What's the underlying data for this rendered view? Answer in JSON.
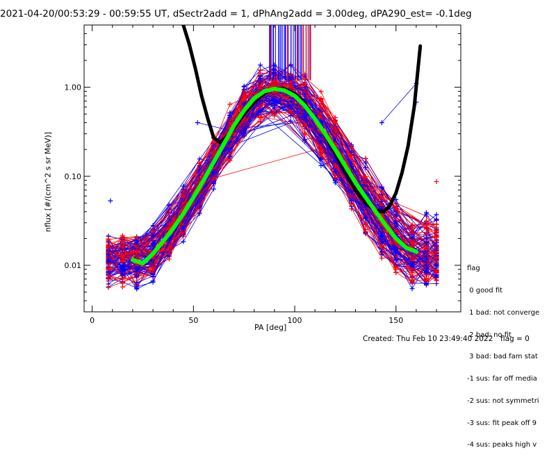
{
  "chart_data": {
    "type": "scatter",
    "title": "2021-04-20/00:53:29 - 00:59:55 UT, dSectr2add = 1, dPhAng2add = 3.00deg, dPA290_est=  -0.1deg",
    "xlabel": "PA [deg]",
    "ylabel": "nflux [#/(cm^2 s sr MeV)]",
    "xlim": [
      -4,
      182
    ],
    "ylim": [
      0.003,
      5.0
    ],
    "y_scale": "log",
    "x_ticks": [
      0,
      50,
      100,
      150
    ],
    "x_tick_labels": [
      "0",
      "50",
      "100",
      "150"
    ],
    "y_ticks": [
      0.01,
      0.1,
      1.0
    ],
    "y_tick_labels": [
      "0.01",
      "0.10",
      "1.00"
    ],
    "grid": false,
    "series_colors": {
      "spectra_red": "#ff0000",
      "spectra_blue": "#0000ff",
      "fit_green": "#00ff00",
      "model_black": "#000000"
    },
    "green_fit": {
      "x": [
        20,
        25,
        30,
        35,
        40,
        45,
        50,
        55,
        60,
        65,
        70,
        75,
        80,
        85,
        90,
        95,
        100,
        105,
        110,
        115,
        120,
        125,
        130,
        135,
        140,
        145,
        150,
        155,
        160
      ],
      "y": [
        0.0115,
        0.0105,
        0.0135,
        0.0185,
        0.026,
        0.038,
        0.058,
        0.09,
        0.145,
        0.23,
        0.37,
        0.55,
        0.75,
        0.9,
        0.96,
        0.92,
        0.8,
        0.62,
        0.44,
        0.3,
        0.2,
        0.13,
        0.085,
        0.058,
        0.04,
        0.028,
        0.02,
        0.0158,
        0.0142
      ]
    },
    "black_model": {
      "x": [
        45,
        48,
        51,
        54,
        57,
        60,
        63,
        66,
        70,
        75,
        80,
        85,
        90,
        95,
        100,
        105,
        110,
        115,
        120,
        125,
        130,
        135,
        140,
        144,
        147,
        150,
        153,
        156,
        159,
        162
      ],
      "y": [
        5.0,
        3.0,
        1.6,
        0.8,
        0.45,
        0.27,
        0.24,
        0.27,
        0.35,
        0.5,
        0.68,
        0.86,
        0.97,
        0.95,
        0.84,
        0.65,
        0.45,
        0.29,
        0.18,
        0.11,
        0.07,
        0.05,
        0.041,
        0.04,
        0.047,
        0.065,
        0.11,
        0.22,
        0.6,
        2.9
      ]
    },
    "sample_points": [
      {
        "x": 9,
        "y": 0.053,
        "series": "blue"
      },
      {
        "x": 52,
        "y": 0.4,
        "series": "blue"
      },
      {
        "x": 75,
        "y": 0.3,
        "series": "blue"
      },
      {
        "x": 143,
        "y": 0.4,
        "series": "blue"
      },
      {
        "x": 160,
        "y": 1.1,
        "series": "blue"
      },
      {
        "x": 160,
        "y": 0.68,
        "series": "blue"
      },
      {
        "x": 170,
        "y": 0.087,
        "series": "red"
      },
      {
        "x": 15,
        "y": 0.02,
        "series": "red"
      },
      {
        "x": 95,
        "y": 1.05,
        "series": "red"
      },
      {
        "x": 103,
        "y": 1.05,
        "series": "red"
      }
    ]
  },
  "legend": {
    "title": "flag",
    "items": [
      " 0 good fit",
      " 1 bad: not converge",
      " 2 bad: no fit",
      " 3 bad: bad fam stat",
      "-1 sus: far off media",
      "-2 sus: not symmetri",
      "-3 sus: fit peak off 9",
      "-4 sus: peaks high v"
    ]
  },
  "footer": {
    "created": "Created: Thu Feb 10 23:49:40 2022",
    "flag": "flag = 0"
  }
}
